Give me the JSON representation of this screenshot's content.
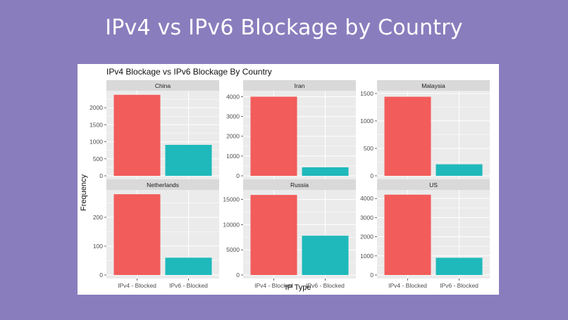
{
  "slide": {
    "title": "IPv4 vs IPv6 Blockage by Country"
  },
  "colors": {
    "background": "#8a7dbd",
    "ipv4": "#f25c5a",
    "ipv6": "#1fb9bb",
    "facet_strip": "#d9d9d9",
    "panel_bg": "#ebebeb",
    "grid": "#ffffff"
  },
  "chart_data": {
    "type": "bar",
    "title": "IPv4 Blockage vs IPv6 Blockage By Country",
    "xlabel": "IP Type",
    "ylabel": "Frequency",
    "categories": [
      "IPv4 - Blocked",
      "IPv6 - Blocked"
    ],
    "facets": [
      {
        "name": "China",
        "values": [
          2380,
          910
        ],
        "ylim": [
          0,
          2500
        ],
        "ticks": [
          0,
          500,
          1000,
          1500,
          2000
        ]
      },
      {
        "name": "Iran",
        "values": [
          4000,
          430
        ],
        "ylim": [
          0,
          4300
        ],
        "ticks": [
          0,
          1000,
          2000,
          3000,
          4000
        ]
      },
      {
        "name": "Malaysia",
        "values": [
          1440,
          210
        ],
        "ylim": [
          0,
          1550
        ],
        "ticks": [
          0,
          500,
          1000,
          1500
        ]
      },
      {
        "name": "Netherlands",
        "values": [
          280,
          60
        ],
        "ylim": [
          0,
          295
        ],
        "ticks": [
          0,
          100,
          200
        ]
      },
      {
        "name": "Russia",
        "values": [
          15900,
          7800
        ],
        "ylim": [
          0,
          16900
        ],
        "ticks": [
          0,
          5000,
          10000,
          15000
        ]
      },
      {
        "name": "US",
        "values": [
          4200,
          900
        ],
        "ylim": [
          0,
          4450
        ],
        "ticks": [
          0,
          1000,
          2000,
          3000,
          4000
        ]
      }
    ]
  }
}
